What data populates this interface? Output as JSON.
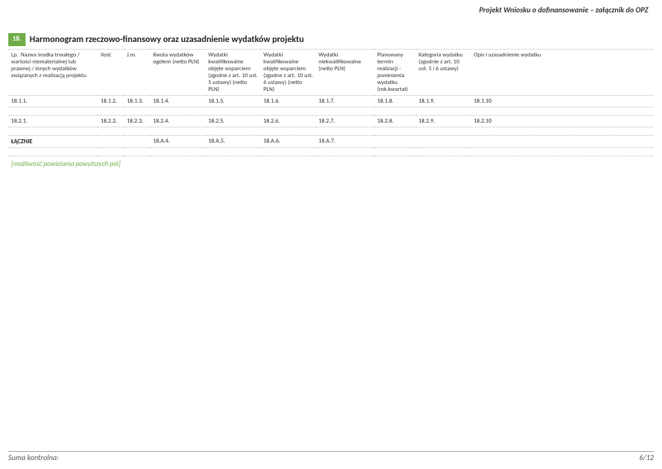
{
  "doc_header": "Projekt Wniosku o dofinansowanie – załącznik do OPZ",
  "section": {
    "number": "18.",
    "title": "Harmonogram rzeczowo-finansowy oraz uzasadnienie wydatków projektu"
  },
  "columns": {
    "c1": "Lp.",
    "c2": "Nazwa środka trwałego / wartości niematerialnej lub prawnej / innych wydatków związanych z realizacją projektu",
    "c3": "Ilość",
    "c4": "J.m.",
    "c5": "Kwota wydatków ogółem (netto PLN)",
    "c6": "Wydatki kwalifikowalne objęte wsparciem (zgodne z art. 10 ust. 5 ustawy) (netto PLN)",
    "c7": "Wydatki kwalifikowalne objęte wsparciem (zgodne z art. 10 ust. 6 ustawy) (netto PLN)",
    "c8": "Wydatki niekwalifikowalne (netto PLN)",
    "c9": "Planowany termin realizacji - poniesienia wydatku (rok.kwartał)",
    "c10": "Kategoria wydatku (zgodnie z art. 10 ust. 5 i 6 ustawy)",
    "c11": "Opis i uzasadnienie wydatku"
  },
  "rows": [
    [
      "18.1.1.",
      "18.1.2.",
      "18.1.3.",
      "18.1.4.",
      "18.1.5.",
      "18.1.6.",
      "18.1.7.",
      "18.1.8.",
      "18.1.9.",
      "18.1.10"
    ],
    [
      "18.2.1.",
      "18.2.2.",
      "18.2.3.",
      "18.2.4.",
      "18.2.5.",
      "18.2.6.",
      "18.2.7.",
      "18.2.8.",
      "18.2.9.",
      "18.2.10"
    ]
  ],
  "total_row": {
    "label": "ŁĄCZNIE",
    "cells": [
      "18.A.4.",
      "18.A.5.",
      "18.A.6.",
      "18.A.7."
    ]
  },
  "placeholder_note": "[możliwość powielania powyższych pól]",
  "footer": {
    "left": "Suma kontrolna:",
    "right": "6/12"
  },
  "colors": {
    "accent_green": "#70ad47",
    "border": "#b7b7b7",
    "text": "#222222",
    "background": "#ffffff"
  },
  "typography": {
    "base_font": "Calibri, Arial, sans-serif",
    "header_fontsize": 11,
    "section_title_fontsize": 13,
    "table_fontsize": 8.5
  }
}
